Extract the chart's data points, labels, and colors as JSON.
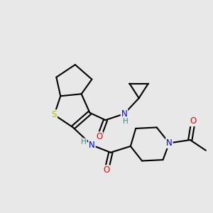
{
  "bg_color": "#e8e8e8",
  "bond_color": "#000000",
  "bond_width": 1.5,
  "atom_colors": {
    "O": "#ff0000",
    "N": "#0000cd",
    "S": "#b8b800",
    "H": "#2e8b8b",
    "C": "#000000"
  },
  "font_size": 8.5
}
